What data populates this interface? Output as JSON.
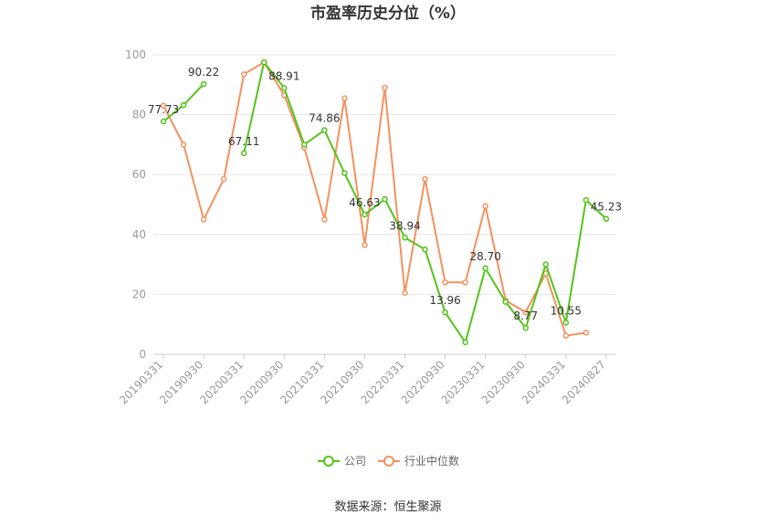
{
  "chart_data": {
    "type": "line",
    "title": "市盈率历史分位（%）",
    "source": "数据来源：恒生聚源",
    "ylim": [
      0,
      100
    ],
    "yticks": [
      0,
      20,
      40,
      60,
      80,
      100
    ],
    "grid": true,
    "legend_position": "bottom",
    "x": [
      "20190331",
      "20190630",
      "20190930",
      "20191231",
      "20200331",
      "20200630",
      "20200930",
      "20201231",
      "20210331",
      "20210630",
      "20210930",
      "20211231",
      "20220331",
      "20220630",
      "20220930",
      "20221231",
      "20230331",
      "20230630",
      "20230930",
      "20231231",
      "20240331",
      "20240630",
      "20240827"
    ],
    "x_tick_labels": [
      "20190331",
      "20190930",
      "20200331",
      "20200930",
      "20210331",
      "20210930",
      "20220331",
      "20220930",
      "20230331",
      "20230930",
      "20240331",
      "20240827"
    ],
    "series": [
      {
        "name": "公司",
        "color": "#52c41a",
        "values": [
          77.73,
          83.2,
          90.22,
          null,
          67.11,
          97.5,
          88.91,
          70.0,
          74.86,
          60.5,
          46.63,
          51.8,
          38.94,
          35.0,
          13.96,
          4.0,
          28.7,
          17.5,
          8.77,
          30.0,
          10.55,
          51.5,
          45.23
        ]
      },
      {
        "name": "行业中位数",
        "color": "#f4915d",
        "values": [
          83.0,
          70.0,
          45.0,
          58.5,
          93.5,
          97.5,
          86.5,
          69.0,
          45.0,
          85.5,
          36.5,
          89.0,
          20.5,
          58.5,
          24.0,
          24.0,
          49.5,
          18.0,
          14.0,
          27.0,
          6.2,
          7.2,
          null
        ]
      }
    ],
    "annotations": [
      {
        "index": 0,
        "text": "77.73"
      },
      {
        "index": 2,
        "text": "90.22"
      },
      {
        "index": 4,
        "text": "67.11"
      },
      {
        "index": 6,
        "text": "88.91"
      },
      {
        "index": 8,
        "text": "74.86"
      },
      {
        "index": 10,
        "text": "46.63"
      },
      {
        "index": 12,
        "text": "38.94"
      },
      {
        "index": 14,
        "text": "13.96"
      },
      {
        "index": 16,
        "text": "28.70"
      },
      {
        "index": 18,
        "text": "8.77"
      },
      {
        "index": 20,
        "text": "10.55"
      },
      {
        "index": 22,
        "text": "45.23"
      }
    ]
  }
}
